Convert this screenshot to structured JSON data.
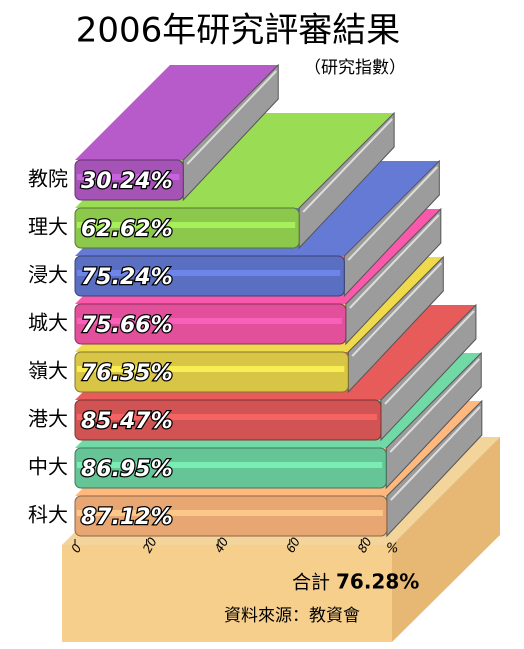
{
  "chart_data": {
    "type": "bar",
    "orientation": "horizontal",
    "title": "2006年研究評審結果",
    "subtitle": "（研究指數）",
    "categories": [
      "教院",
      "理大",
      "浸大",
      "城大",
      "嶺大",
      "港大",
      "中大",
      "科大"
    ],
    "values": [
      30.24,
      62.62,
      75.24,
      75.66,
      76.35,
      85.47,
      86.95,
      87.12
    ],
    "value_labels": [
      "30.24%",
      "62.62%",
      "75.24%",
      "75.66%",
      "76.35%",
      "85.47%",
      "86.95%",
      "87.12%"
    ],
    "colors": [
      "#a653b8",
      "#8cc84c",
      "#5b6fc2",
      "#e2509b",
      "#d9c545",
      "#d25353",
      "#66c596",
      "#e8a772"
    ],
    "xlim": [
      0,
      88
    ],
    "xticks": [
      0,
      20,
      40,
      60,
      80
    ],
    "x_label": "%",
    "total": {
      "name": "合計",
      "value": 76.28,
      "value_label": "76.28%"
    },
    "source": "資料來源：教資會"
  }
}
